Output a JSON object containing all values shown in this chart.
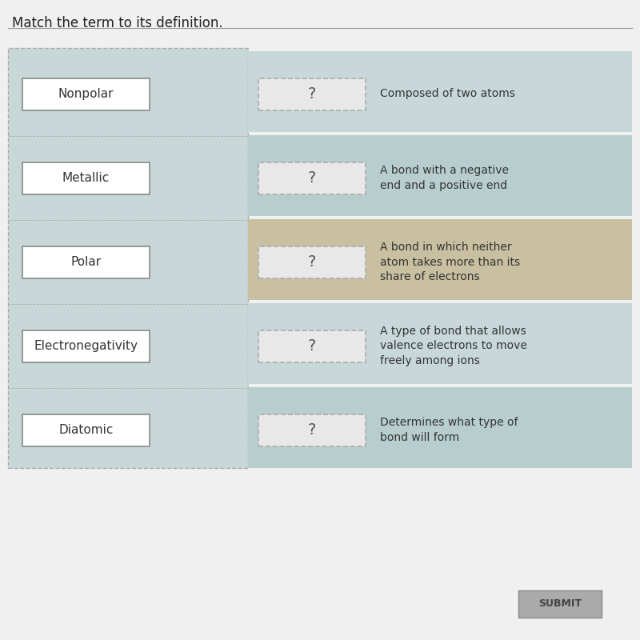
{
  "title": "Match the term to its definition.",
  "terms": [
    "Nonpolar",
    "Metallic",
    "Polar",
    "Electronegativity",
    "Diatomic"
  ],
  "definitions": [
    "Composed of two atoms",
    "A bond with a negative\nend and a positive end",
    "A bond in which neither\natom takes more than its\nshare of electrons",
    "A type of bond that allows\nvalence electrons to move\nfreely among ions",
    "Determines what type of\nbond will form"
  ],
  "bg_color": "#f0f0f0",
  "left_panel_bg": "#c8d8d8",
  "row_colors_even": "#b8cece",
  "row_colors_odd": "#c8d8da",
  "term_box_color": "#ffffff",
  "term_box_border": "#888888",
  "answer_box_color": "#e8e8e8",
  "answer_box_border_dashed": true,
  "question_mark_color": "#555555",
  "definition_text_color": "#333333",
  "title_color": "#222222",
  "submit_btn_color": "#aaaaaa",
  "submit_text": "SUBMIT",
  "polar_row_color": "#c8c0a0"
}
